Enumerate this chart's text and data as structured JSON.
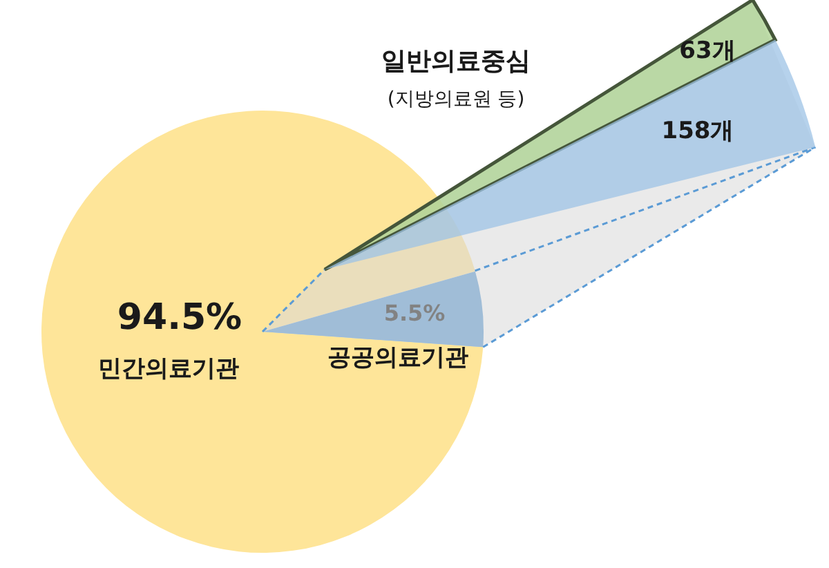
{
  "chart_data": [
    {
      "type": "pie",
      "categories": [
        "민간의료기관",
        "공공의료기관"
      ],
      "values": [
        94.5,
        5.5
      ],
      "colors": [
        "#fee599",
        "#5b9bd5"
      ],
      "value_labels": [
        "94.5%",
        "5.5%"
      ]
    },
    {
      "type": "other",
      "categories": [
        "일반의료중심",
        null
      ],
      "values": [
        63,
        158
      ],
      "colors": [
        "#a9d18e",
        "#9dc3e6"
      ],
      "value_labels": [
        "63개",
        "158개"
      ],
      "annotations": [
        "(지방의료원 등)"
      ]
    }
  ]
}
